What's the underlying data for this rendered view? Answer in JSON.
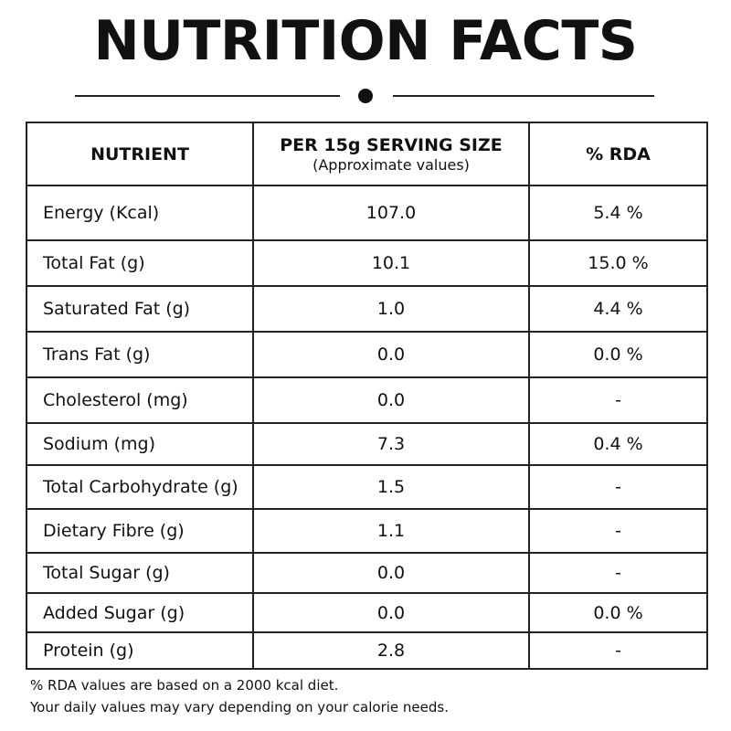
{
  "title": "NUTRITION FACTS",
  "table": {
    "headers": {
      "nutrient": "NUTRIENT",
      "serving": "PER 15g SERVING SIZE",
      "serving_note": "(Approximate values)",
      "rda": "% RDA"
    },
    "rows": [
      {
        "nutrient": "Energy (Kcal)",
        "value": "107.0",
        "rda": "5.4 %"
      },
      {
        "nutrient": "Total Fat (g)",
        "value": "10.1",
        "rda": "15.0 %"
      },
      {
        "nutrient": "Saturated Fat (g)",
        "value": "1.0",
        "rda": "4.4 %"
      },
      {
        "nutrient": "Trans Fat (g)",
        "value": "0.0",
        "rda": "0.0 %"
      },
      {
        "nutrient": "Cholesterol (mg)",
        "value": "0.0",
        "rda": "-"
      },
      {
        "nutrient": "Sodium (mg)",
        "value": "7.3",
        "rda": "0.4 %"
      },
      {
        "nutrient": "Total Carbohydrate (g)",
        "value": "1.5",
        "rda": "-"
      },
      {
        "nutrient": "Dietary Fibre (g)",
        "value": "1.1",
        "rda": "-"
      },
      {
        "nutrient": "Total Sugar (g)",
        "value": "0.0",
        "rda": "-"
      },
      {
        "nutrient": "Added Sugar (g)",
        "value": "0.0",
        "rda": "0.0 %"
      },
      {
        "nutrient": "Protein (g)",
        "value": "2.8",
        "rda": "-"
      }
    ]
  },
  "footnote": {
    "line1": "% RDA values are based on a 2000 kcal diet.",
    "line2": "Your daily values may vary depending on your calorie needs."
  }
}
